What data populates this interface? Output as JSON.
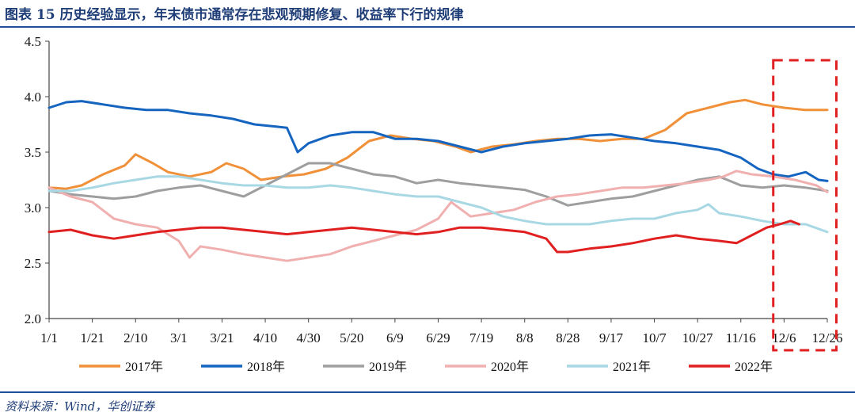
{
  "title": "图表 15 历史经验显示，年末债市通常存在悲观预期修复、收益率下行的规律",
  "source": "资料来源：Wind，华创证券",
  "chart_data": {
    "type": "line",
    "x_ticks": [
      "1/1",
      "1/21",
      "2/10",
      "3/1",
      "3/21",
      "4/10",
      "4/30",
      "5/20",
      "6/9",
      "6/29",
      "7/19",
      "8/8",
      "8/28",
      "9/17",
      "10/7",
      "10/27",
      "11/16",
      "12/6",
      "12/26"
    ],
    "y_ticks": [
      "2.0",
      "2.5",
      "3.0",
      "3.5",
      "4.0",
      "4.5"
    ],
    "ylim": [
      2.0,
      4.5
    ],
    "x_range_days": [
      0,
      360
    ],
    "grid": false,
    "legend_position": "bottom",
    "highlight_box": {
      "from_day": 335,
      "to_day": 362,
      "color": "#e02020",
      "style": "dashed"
    },
    "series": [
      {
        "name": "2017年",
        "color": "#f0913a",
        "points": [
          [
            0,
            3.18
          ],
          [
            8,
            3.17
          ],
          [
            15,
            3.2
          ],
          [
            25,
            3.3
          ],
          [
            35,
            3.38
          ],
          [
            40,
            3.48
          ],
          [
            48,
            3.4
          ],
          [
            55,
            3.32
          ],
          [
            65,
            3.28
          ],
          [
            75,
            3.32
          ],
          [
            82,
            3.4
          ],
          [
            90,
            3.35
          ],
          [
            98,
            3.25
          ],
          [
            108,
            3.28
          ],
          [
            118,
            3.3
          ],
          [
            128,
            3.35
          ],
          [
            138,
            3.45
          ],
          [
            148,
            3.6
          ],
          [
            158,
            3.65
          ],
          [
            168,
            3.62
          ],
          [
            178,
            3.6
          ],
          [
            188,
            3.55
          ],
          [
            195,
            3.5
          ],
          [
            205,
            3.55
          ],
          [
            215,
            3.57
          ],
          [
            225,
            3.6
          ],
          [
            235,
            3.62
          ],
          [
            245,
            3.62
          ],
          [
            255,
            3.6
          ],
          [
            265,
            3.62
          ],
          [
            275,
            3.62
          ],
          [
            285,
            3.7
          ],
          [
            295,
            3.85
          ],
          [
            305,
            3.9
          ],
          [
            315,
            3.95
          ],
          [
            322,
            3.97
          ],
          [
            330,
            3.93
          ],
          [
            340,
            3.9
          ],
          [
            350,
            3.88
          ],
          [
            360,
            3.88
          ]
        ]
      },
      {
        "name": "2018年",
        "color": "#1565c0",
        "points": [
          [
            0,
            3.9
          ],
          [
            8,
            3.95
          ],
          [
            15,
            3.96
          ],
          [
            25,
            3.93
          ],
          [
            35,
            3.9
          ],
          [
            45,
            3.88
          ],
          [
            55,
            3.88
          ],
          [
            65,
            3.85
          ],
          [
            75,
            3.83
          ],
          [
            85,
            3.8
          ],
          [
            95,
            3.75
          ],
          [
            105,
            3.73
          ],
          [
            110,
            3.72
          ],
          [
            115,
            3.5
          ],
          [
            120,
            3.58
          ],
          [
            130,
            3.65
          ],
          [
            140,
            3.68
          ],
          [
            150,
            3.68
          ],
          [
            160,
            3.62
          ],
          [
            170,
            3.62
          ],
          [
            180,
            3.6
          ],
          [
            190,
            3.55
          ],
          [
            200,
            3.5
          ],
          [
            210,
            3.55
          ],
          [
            220,
            3.58
          ],
          [
            230,
            3.6
          ],
          [
            240,
            3.62
          ],
          [
            250,
            3.65
          ],
          [
            260,
            3.66
          ],
          [
            270,
            3.63
          ],
          [
            280,
            3.6
          ],
          [
            290,
            3.58
          ],
          [
            300,
            3.55
          ],
          [
            310,
            3.52
          ],
          [
            320,
            3.45
          ],
          [
            328,
            3.35
          ],
          [
            335,
            3.3
          ],
          [
            342,
            3.28
          ],
          [
            350,
            3.32
          ],
          [
            356,
            3.25
          ],
          [
            360,
            3.24
          ]
        ]
      },
      {
        "name": "2019年",
        "color": "#9e9e9e",
        "points": [
          [
            0,
            3.15
          ],
          [
            10,
            3.12
          ],
          [
            20,
            3.1
          ],
          [
            30,
            3.08
          ],
          [
            40,
            3.1
          ],
          [
            50,
            3.15
          ],
          [
            60,
            3.18
          ],
          [
            70,
            3.2
          ],
          [
            80,
            3.15
          ],
          [
            90,
            3.1
          ],
          [
            100,
            3.2
          ],
          [
            110,
            3.3
          ],
          [
            120,
            3.4
          ],
          [
            130,
            3.4
          ],
          [
            140,
            3.35
          ],
          [
            150,
            3.3
          ],
          [
            160,
            3.28
          ],
          [
            170,
            3.22
          ],
          [
            180,
            3.25
          ],
          [
            190,
            3.22
          ],
          [
            200,
            3.2
          ],
          [
            210,
            3.18
          ],
          [
            220,
            3.16
          ],
          [
            230,
            3.1
          ],
          [
            240,
            3.02
          ],
          [
            250,
            3.05
          ],
          [
            260,
            3.08
          ],
          [
            270,
            3.1
          ],
          [
            280,
            3.15
          ],
          [
            290,
            3.2
          ],
          [
            300,
            3.25
          ],
          [
            310,
            3.28
          ],
          [
            320,
            3.2
          ],
          [
            330,
            3.18
          ],
          [
            340,
            3.2
          ],
          [
            350,
            3.18
          ],
          [
            360,
            3.15
          ]
        ]
      },
      {
        "name": "2020年",
        "color": "#f0b0b0",
        "points": [
          [
            0,
            3.18
          ],
          [
            10,
            3.1
          ],
          [
            20,
            3.05
          ],
          [
            30,
            2.9
          ],
          [
            40,
            2.85
          ],
          [
            50,
            2.82
          ],
          [
            60,
            2.7
          ],
          [
            65,
            2.55
          ],
          [
            70,
            2.65
          ],
          [
            80,
            2.62
          ],
          [
            90,
            2.58
          ],
          [
            100,
            2.55
          ],
          [
            110,
            2.52
          ],
          [
            120,
            2.55
          ],
          [
            130,
            2.58
          ],
          [
            140,
            2.65
          ],
          [
            150,
            2.7
          ],
          [
            160,
            2.75
          ],
          [
            170,
            2.8
          ],
          [
            180,
            2.9
          ],
          [
            186,
            3.05
          ],
          [
            195,
            2.92
          ],
          [
            205,
            2.95
          ],
          [
            215,
            2.98
          ],
          [
            225,
            3.05
          ],
          [
            235,
            3.1
          ],
          [
            245,
            3.12
          ],
          [
            255,
            3.15
          ],
          [
            265,
            3.18
          ],
          [
            275,
            3.18
          ],
          [
            285,
            3.2
          ],
          [
            295,
            3.22
          ],
          [
            305,
            3.25
          ],
          [
            312,
            3.28
          ],
          [
            318,
            3.33
          ],
          [
            325,
            3.3
          ],
          [
            335,
            3.28
          ],
          [
            345,
            3.25
          ],
          [
            355,
            3.2
          ],
          [
            360,
            3.14
          ]
        ]
      },
      {
        "name": "2021年",
        "color": "#a8d8e4",
        "points": [
          [
            0,
            3.15
          ],
          [
            10,
            3.15
          ],
          [
            20,
            3.18
          ],
          [
            30,
            3.22
          ],
          [
            40,
            3.25
          ],
          [
            50,
            3.28
          ],
          [
            60,
            3.28
          ],
          [
            70,
            3.25
          ],
          [
            80,
            3.22
          ],
          [
            90,
            3.2
          ],
          [
            100,
            3.2
          ],
          [
            110,
            3.18
          ],
          [
            120,
            3.18
          ],
          [
            130,
            3.2
          ],
          [
            140,
            3.18
          ],
          [
            150,
            3.15
          ],
          [
            160,
            3.12
          ],
          [
            170,
            3.1
          ],
          [
            180,
            3.1
          ],
          [
            190,
            3.05
          ],
          [
            200,
            3.0
          ],
          [
            210,
            2.92
          ],
          [
            220,
            2.88
          ],
          [
            230,
            2.85
          ],
          [
            240,
            2.85
          ],
          [
            250,
            2.85
          ],
          [
            260,
            2.88
          ],
          [
            270,
            2.9
          ],
          [
            280,
            2.9
          ],
          [
            290,
            2.95
          ],
          [
            300,
            2.98
          ],
          [
            305,
            3.03
          ],
          [
            310,
            2.95
          ],
          [
            320,
            2.92
          ],
          [
            330,
            2.88
          ],
          [
            340,
            2.85
          ],
          [
            350,
            2.85
          ],
          [
            360,
            2.78
          ]
        ]
      },
      {
        "name": "2022年",
        "color": "#e02020",
        "points": [
          [
            0,
            2.78
          ],
          [
            10,
            2.8
          ],
          [
            20,
            2.75
          ],
          [
            30,
            2.72
          ],
          [
            40,
            2.75
          ],
          [
            50,
            2.78
          ],
          [
            60,
            2.8
          ],
          [
            70,
            2.82
          ],
          [
            80,
            2.82
          ],
          [
            90,
            2.8
          ],
          [
            100,
            2.78
          ],
          [
            110,
            2.76
          ],
          [
            120,
            2.78
          ],
          [
            130,
            2.8
          ],
          [
            140,
            2.82
          ],
          [
            150,
            2.8
          ],
          [
            160,
            2.78
          ],
          [
            170,
            2.76
          ],
          [
            180,
            2.78
          ],
          [
            190,
            2.82
          ],
          [
            200,
            2.82
          ],
          [
            210,
            2.8
          ],
          [
            220,
            2.78
          ],
          [
            230,
            2.72
          ],
          [
            235,
            2.6
          ],
          [
            240,
            2.6
          ],
          [
            250,
            2.63
          ],
          [
            260,
            2.65
          ],
          [
            270,
            2.68
          ],
          [
            280,
            2.72
          ],
          [
            290,
            2.75
          ],
          [
            300,
            2.72
          ],
          [
            310,
            2.7
          ],
          [
            318,
            2.68
          ],
          [
            325,
            2.75
          ],
          [
            332,
            2.82
          ],
          [
            338,
            2.85
          ],
          [
            343,
            2.88
          ],
          [
            347,
            2.85
          ]
        ]
      }
    ]
  }
}
